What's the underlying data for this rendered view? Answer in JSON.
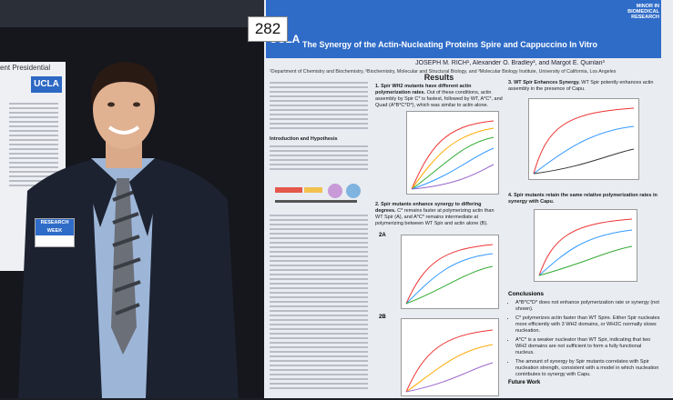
{
  "poster_number": "282",
  "left_poster": {
    "title_fragment": "ent Presidential",
    "logo": "UCLA"
  },
  "badge": "RESEARCH WEEK",
  "poster": {
    "logo": "UCLA",
    "program": [
      "MINOR IN",
      "BIOMEDICAL RESEARCH"
    ],
    "title": "The Synergy of the Actin-Nucleating Proteins Spire and Cappuccino In Vitro",
    "authors": "JOSEPH M. RICH¹, Alexander O. Bradley², and Margot E. Quinlan³",
    "affiliation": "¹Department of Chemistry and Biochemistry, ²Biochemistry, Molecular and Structural Biology, and ³Molecular Biology Institute, University of California, Los Angeles",
    "intro_heading": "Introduction and Hypothesis",
    "results_heading": "Results",
    "results": [
      {
        "heading": "1. Spir WH2 mutants have different actin polymerization rates.",
        "text": "Out of these conditions, actin assembly by Spir C* is fastest, followed by WT, A*C*, and Quad (A*B*C*D*), which was similar to actin alone."
      },
      {
        "heading": "2. Spir mutants enhance synergy to differing degrees.",
        "text": "C* remains faster at polymerizing actin than WT Spir (A), and A*C* remains intermediate at polymerizing between WT Spir and actin alone (B)."
      },
      {
        "heading": "3. WT Spir Enhances Synergy.",
        "text": "WT Spir potently enhances actin assembly in the presence of Capu."
      },
      {
        "heading": "4. Spir mutants retain the same relative polymerization rates in synergy with Capu.",
        "text": ""
      }
    ],
    "panel_labels": [
      "2A",
      "2B"
    ],
    "conclusions_heading": "Conclusions",
    "conclusions": [
      "A*B*C*D* does not enhance polymerization rate or synergy (not shown).",
      "C* polymerizes actin faster than WT Spire. Either Spir nucleates more efficiently with 3 WH2 domains, or WH2C normally slows nucleation.",
      "A*C* is a weaker nucleator than WT Spir, indicating that two WH2 domains are not sufficient to form a fully functional nucleus.",
      "The amount of synergy by Spir mutants correlates with Spir nucleation strength, consistent with a model in which nucleation contributes to synergy with Capu."
    ],
    "future_heading": "Future Work"
  }
}
